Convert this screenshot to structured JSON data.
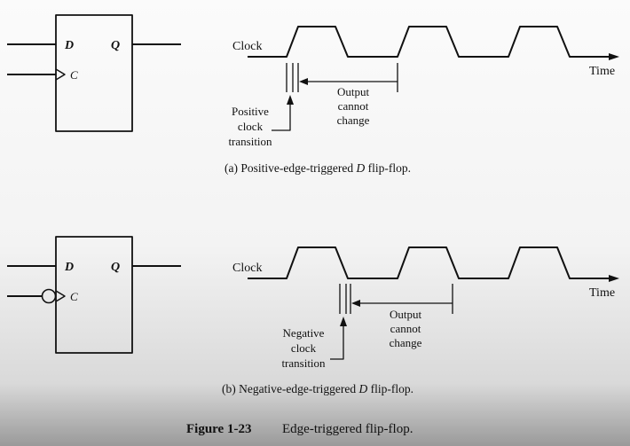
{
  "diagram_a": {
    "pin_d": "D",
    "pin_q": "Q",
    "pin_c": "C",
    "clock_label": "Clock",
    "time_label": "Time",
    "edge_label_line1": "Positive",
    "edge_label_line2": "clock",
    "edge_label_line3": "transition",
    "output_label_line1": "Output",
    "output_label_line2": "cannot",
    "output_label_line3": "change",
    "caption_prefix": "(a) Positive-edge-triggered ",
    "caption_italic": "D",
    "caption_suffix": " flip-flop."
  },
  "diagram_b": {
    "pin_d": "D",
    "pin_q": "Q",
    "pin_c": "C",
    "clock_label": "Clock",
    "time_label": "Time",
    "edge_label_line1": "Negative",
    "edge_label_line2": "clock",
    "edge_label_line3": "transition",
    "output_label_line1": "Output",
    "output_label_line2": "cannot",
    "output_label_line3": "change",
    "caption_prefix": "(b) Negative-edge-triggered ",
    "caption_italic": "D",
    "caption_suffix": " flip-flop."
  },
  "figure": {
    "number": "Figure 1-23",
    "title": "Edge-triggered flip-flop."
  }
}
